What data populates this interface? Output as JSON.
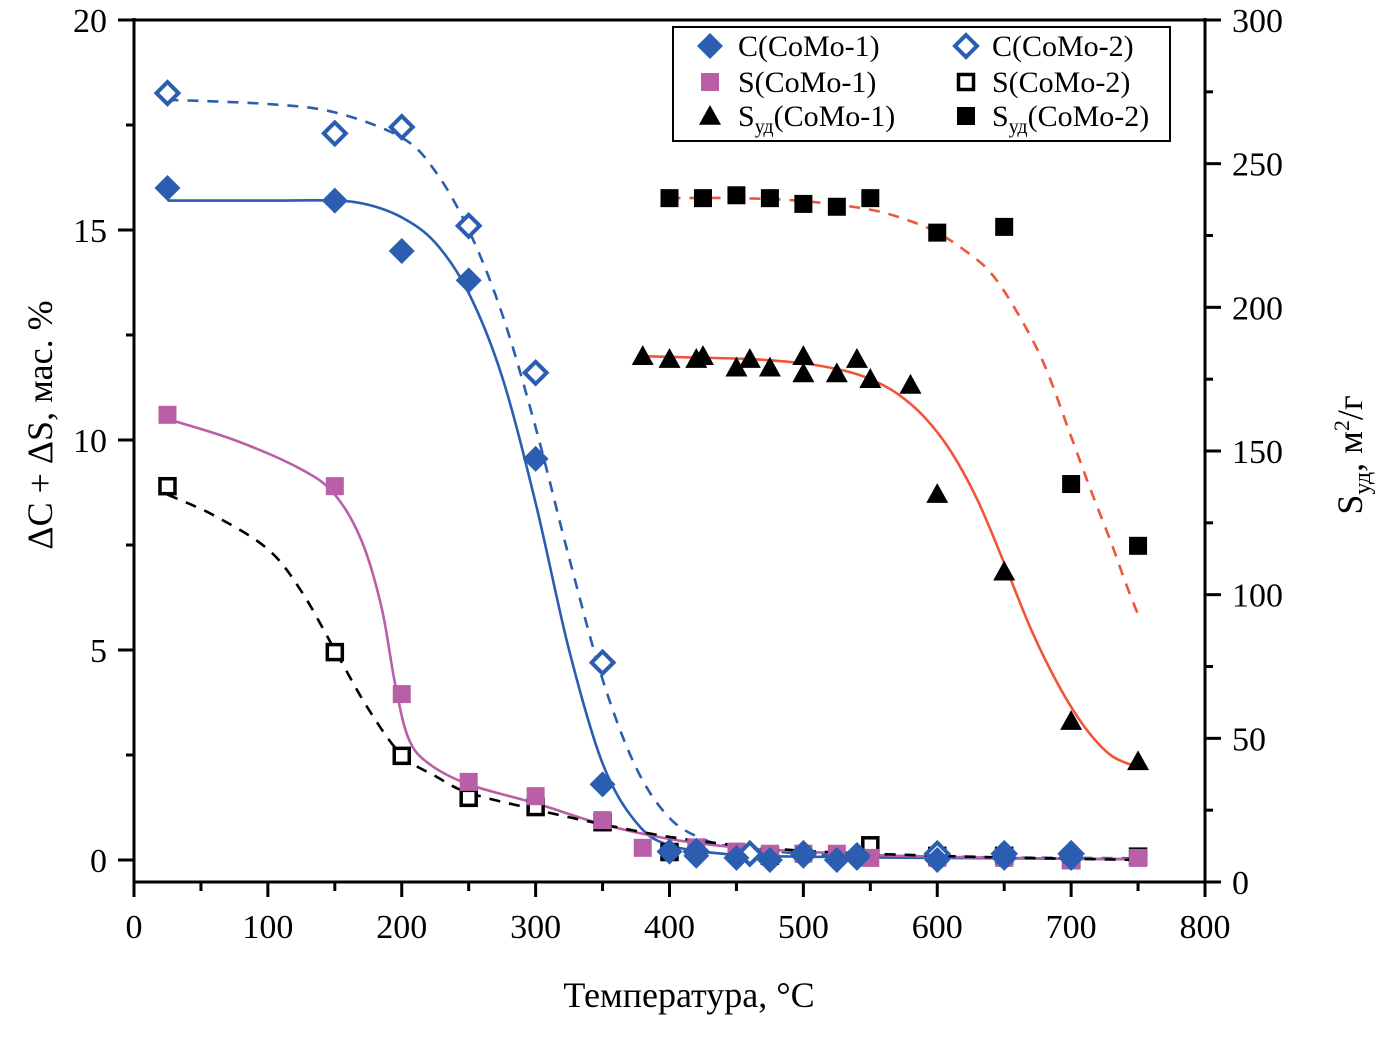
{
  "chart_data": {
    "type": "scatter",
    "title": "",
    "xlabel": "Температура, °C",
    "ylabel": "ΔC + ΔS, мас. %",
    "y2label": "Sуд, м²/г",
    "y2label_parts": {
      "main": "S",
      "sub": "уд",
      "rest": ", м",
      "sup": "2",
      "tail": "/г"
    },
    "xlim": [
      0,
      800
    ],
    "ylim": [
      -0.5,
      20
    ],
    "y2lim": [
      0,
      300
    ],
    "xticks": [
      0,
      100,
      200,
      300,
      400,
      500,
      600,
      700,
      800
    ],
    "yticks": [
      0,
      5,
      10,
      15,
      20
    ],
    "y2ticks": [
      0,
      50,
      100,
      150,
      200,
      250,
      300
    ],
    "grid": false,
    "legend_position": "top-right",
    "colors": {
      "blue": "#2B5EB0",
      "magenta": "#B85FA8",
      "orange": "#F0553A",
      "black": "#000000"
    },
    "series": [
      {
        "name": "C(CoMo-1)",
        "legend_main": "C(CoMo-1)",
        "legend_sub": "",
        "axis": "left",
        "marker": "diamond-filled",
        "color": "#2B5EB0",
        "x": [
          25,
          150,
          200,
          250,
          300,
          350,
          400,
          420,
          450,
          475,
          500,
          525,
          540,
          600,
          650,
          700
        ],
        "y": [
          16.0,
          15.7,
          14.5,
          13.8,
          9.55,
          1.8,
          0.2,
          0.1,
          0.05,
          0.0,
          0.1,
          0.0,
          0.05,
          0.0,
          0.05,
          0.05
        ],
        "fit": {
          "style": "solid",
          "color": "#2B5EB0",
          "x": [
            25,
            100,
            150,
            175,
            200,
            225,
            250,
            275,
            300,
            325,
            350,
            375,
            400,
            450,
            500,
            550,
            600,
            650,
            700,
            750
          ],
          "y": [
            15.7,
            15.7,
            15.7,
            15.6,
            15.3,
            14.7,
            13.5,
            11.5,
            8.5,
            5.0,
            2.3,
            0.9,
            0.35,
            0.12,
            0.08,
            0.06,
            0.05,
            0.04,
            0.03,
            0.02
          ]
        }
      },
      {
        "name": "C(CoMo-2)",
        "legend_main": "C(CoMo-2)",
        "legend_sub": "",
        "axis": "left",
        "marker": "diamond-open",
        "color": "#2B5EB0",
        "x": [
          25,
          150,
          200,
          250,
          300,
          350,
          420,
          460,
          500,
          540,
          600,
          650,
          700
        ],
        "y": [
          18.26,
          17.3,
          17.45,
          15.1,
          11.6,
          4.7,
          0.2,
          0.15,
          0.15,
          0.1,
          0.15,
          0.15,
          0.15
        ],
        "fit": {
          "style": "dashed",
          "color": "#2B5EB0",
          "x": [
            25,
            100,
            150,
            200,
            225,
            250,
            275,
            300,
            325,
            350,
            375,
            400,
            425,
            450,
            500,
            550,
            600,
            650,
            700,
            750
          ],
          "y": [
            18.1,
            18.0,
            17.8,
            17.2,
            16.4,
            15.0,
            13.0,
            10.3,
            7.2,
            4.3,
            2.2,
            1.0,
            0.5,
            0.3,
            0.15,
            0.1,
            0.08,
            0.06,
            0.05,
            0.04
          ]
        }
      },
      {
        "name": "S(CoMo-1)",
        "legend_main": "S(CoMo-1)",
        "legend_sub": "",
        "axis": "left",
        "marker": "square-filled",
        "color": "#B85FA8",
        "x": [
          25,
          150,
          200,
          250,
          300,
          350,
          380,
          420,
          450,
          475,
          500,
          525,
          550,
          600,
          650,
          700,
          750
        ],
        "y": [
          10.6,
          8.9,
          3.95,
          1.86,
          1.52,
          0.95,
          0.29,
          0.3,
          0.2,
          0.15,
          0.15,
          0.15,
          0.05,
          0.05,
          0.05,
          0.0,
          0.05
        ],
        "fit": {
          "style": "solid",
          "color": "#B85FA8",
          "x": [
            25,
            75,
            125,
            150,
            170,
            185,
            195,
            205,
            220,
            250,
            300,
            350,
            400,
            450,
            500,
            550,
            600,
            650,
            700,
            750
          ],
          "y": [
            10.5,
            10.0,
            9.3,
            8.7,
            7.6,
            6.0,
            4.2,
            2.9,
            2.3,
            1.8,
            1.35,
            0.85,
            0.5,
            0.3,
            0.2,
            0.12,
            0.08,
            0.05,
            0.03,
            0.02
          ]
        }
      },
      {
        "name": "S(CoMo-2)",
        "legend_main": "S(CoMo-2)",
        "legend_sub": "",
        "axis": "left",
        "marker": "square-open",
        "color": "#000000",
        "x": [
          25,
          150,
          200,
          250,
          300,
          350,
          400,
          475,
          550,
          600,
          650,
          700,
          750
        ],
        "y": [
          8.9,
          4.95,
          2.48,
          1.48,
          1.26,
          0.9,
          0.19,
          0.1,
          0.35,
          0.1,
          0.1,
          0.0,
          0.08
        ],
        "fit": {
          "style": "dashed",
          "color": "#000000",
          "x": [
            25,
            60,
            100,
            125,
            150,
            175,
            200,
            225,
            250,
            300,
            350,
            400,
            450,
            500,
            550,
            600,
            650,
            700,
            750
          ],
          "y": [
            8.7,
            8.2,
            7.4,
            6.4,
            5.0,
            3.6,
            2.5,
            2.0,
            1.6,
            1.2,
            0.85,
            0.55,
            0.35,
            0.22,
            0.15,
            0.1,
            0.06,
            0.03,
            0.0
          ]
        }
      },
      {
        "name": "Sуд(CoMo-1)",
        "legend_main": "S",
        "legend_sub": "уд",
        "legend_tail": "(CoMo-1)",
        "axis": "right",
        "marker": "triangle-filled",
        "color": "#000000",
        "x": [
          380,
          400,
          420,
          425,
          450,
          460,
          475,
          500,
          500,
          525,
          540,
          550,
          580,
          600,
          650,
          700,
          750
        ],
        "y": [
          183,
          182,
          182,
          183,
          179,
          182,
          179,
          183,
          177,
          177,
          182,
          175,
          173,
          135,
          108,
          56,
          42
        ],
        "fit": {
          "style": "solid",
          "color": "#F0553A",
          "x": [
            380,
            420,
            460,
            500,
            530,
            550,
            570,
            590,
            610,
            630,
            650,
            670,
            690,
            710,
            730,
            750
          ],
          "y": [
            183,
            182.5,
            182,
            180.5,
            178,
            175,
            170,
            162,
            150,
            133,
            111,
            88,
            69,
            54,
            44,
            40
          ]
        }
      },
      {
        "name": "Sуд(CoMo-2)",
        "legend_main": "S",
        "legend_sub": "уд",
        "legend_tail": "(CoMo-2)",
        "axis": "right",
        "marker": "square-filled",
        "color": "#000000",
        "x": [
          400,
          425,
          450,
          475,
          500,
          525,
          550,
          600,
          650,
          700,
          750
        ],
        "y": [
          238,
          238,
          239,
          238,
          236,
          235,
          238,
          226,
          228,
          138.5,
          117
        ],
        "fit": {
          "style": "dashed",
          "color": "#F0553A",
          "x": [
            400,
            450,
            500,
            550,
            580,
            600,
            620,
            640,
            660,
            680,
            700,
            715,
            730,
            740,
            750
          ],
          "y": [
            238,
            238,
            237,
            234,
            230,
            226,
            220,
            212,
            198,
            180,
            155,
            136,
            118,
            105,
            93
          ]
        }
      }
    ]
  }
}
